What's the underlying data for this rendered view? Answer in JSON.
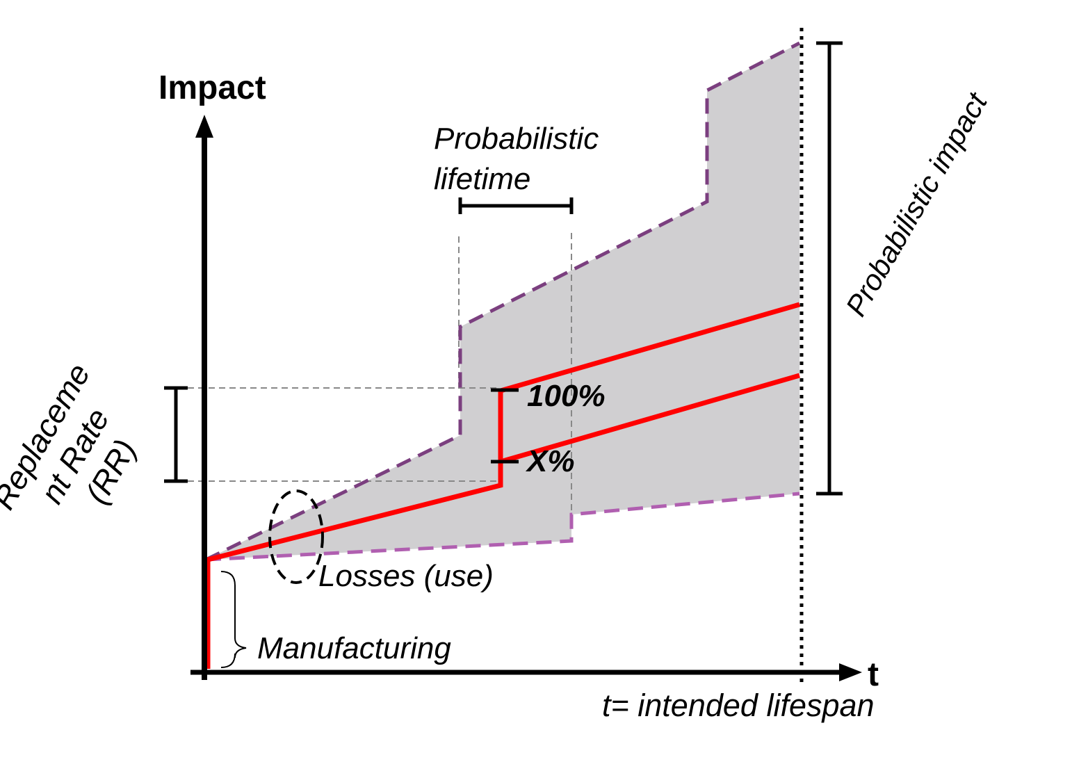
{
  "diagram": {
    "y_axis_label": "Impact",
    "x_axis_label": "t",
    "x_axis_end_label": "t= intended lifespan",
    "rr_label_lines": [
      "Replaceme",
      "nt Rate",
      "(RR)"
    ],
    "probabilistic_lifetime_lines": [
      "Probabilistic",
      "lifetime"
    ],
    "probabilistic_impact_label": "Probabilistic impact",
    "pct_100_label": "100%",
    "pct_x_label": "X%",
    "losses_label": "Losses (use)",
    "manufacturing_label": "Manufacturing"
  },
  "colors": {
    "axis": "#000000",
    "impact_line": "#ff0000",
    "upper_bound": "#7b3f7f",
    "lower_bound": "#b05fb0",
    "band_fill": "#d0cfd1",
    "guide": "#888888"
  }
}
